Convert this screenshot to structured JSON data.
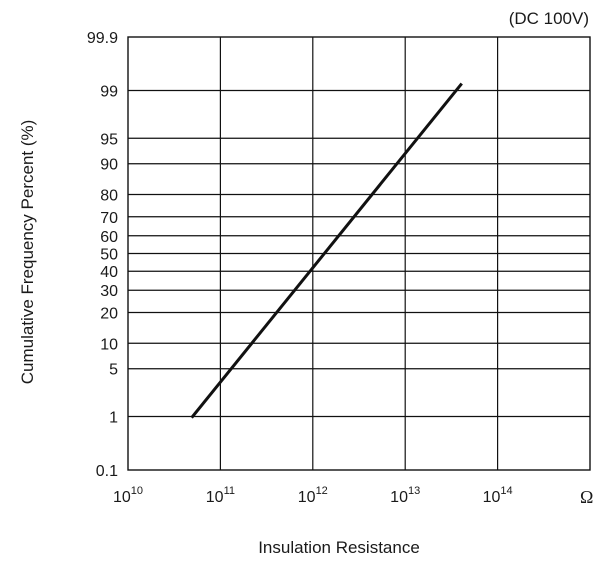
{
  "chart_data": {
    "type": "line",
    "condition": "(DC 100V)",
    "xlabel": "Insulation Resistance",
    "ylabel": "Cumulative Frequency Percent (%)",
    "x_unit": "Ω",
    "x_scale": "log",
    "y_scale": "probability",
    "xlim": [
      10000000000.0,
      1000000000000000.0
    ],
    "ylim": [
      0.1,
      99.9
    ],
    "x_ticks": [
      {
        "base": "10",
        "exp": "10",
        "value": 10000000000.0
      },
      {
        "base": "10",
        "exp": "11",
        "value": 100000000000.0
      },
      {
        "base": "10",
        "exp": "12",
        "value": 1000000000000.0
      },
      {
        "base": "10",
        "exp": "13",
        "value": 10000000000000.0
      },
      {
        "base": "10",
        "exp": "14",
        "value": 100000000000000.0
      }
    ],
    "y_ticks": [
      "99.9",
      "99",
      "95",
      "90",
      "80",
      "70",
      "60",
      "50",
      "40",
      "30",
      "20",
      "10",
      "5",
      "1",
      "0.1"
    ],
    "grid": true,
    "series": [
      {
        "x": [
          50000000000.0,
          40000000000000.0
        ],
        "y": [
          1,
          99.2
        ]
      }
    ]
  }
}
